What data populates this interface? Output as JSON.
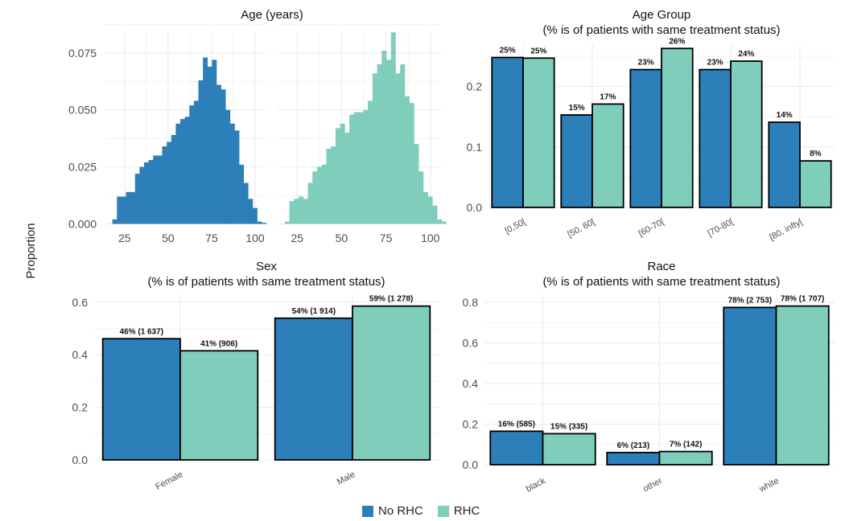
{
  "colors": {
    "no_rhc": "#2C7FB8",
    "rhc": "#7FCDBB",
    "grid": "#EBEBEB",
    "axis_text": "#4D4D4D"
  },
  "y_axis_label": "Proportion",
  "legend": [
    {
      "label": "No RHC",
      "color": "#2C7FB8"
    },
    {
      "label": "RHC",
      "color": "#7FCDBB"
    }
  ],
  "chart_data": [
    {
      "id": "age",
      "type": "bar",
      "subtype": "histogram",
      "title": "Age (years)",
      "subtitle": "",
      "ylim": [
        0,
        0.085
      ],
      "yticks": [
        0.0,
        0.025,
        0.05,
        0.075
      ],
      "ytick_labels": [
        "0.000",
        "0.025",
        "0.050",
        "0.075"
      ],
      "xlim": [
        14,
        106
      ],
      "xticks": [
        25,
        50,
        75,
        100
      ],
      "bin_start": 18,
      "bin_width": 2.6,
      "series": [
        {
          "name": "No RHC",
          "values": [
            0.002,
            0.012,
            0.012,
            0.014,
            0.014,
            0.022,
            0.025,
            0.027,
            0.028,
            0.03,
            0.03,
            0.034,
            0.036,
            0.039,
            0.044,
            0.046,
            0.047,
            0.052,
            0.054,
            0.063,
            0.073,
            0.069,
            0.072,
            0.061,
            0.059,
            0.05,
            0.044,
            0.041,
            0.026,
            0.018,
            0.011,
            0.007,
            0.001,
            0.0005
          ]
        },
        {
          "name": "RHC",
          "values": [
            0.001,
            0.01,
            0.011,
            0.012,
            0.011,
            0.018,
            0.023,
            0.025,
            0.026,
            0.033,
            0.034,
            0.042,
            0.044,
            0.04,
            0.048,
            0.049,
            0.049,
            0.05,
            0.054,
            0.066,
            0.07,
            0.076,
            0.072,
            0.084,
            0.066,
            0.07,
            0.056,
            0.053,
            0.035,
            0.023,
            0.014,
            0.012,
            0.008,
            0.002,
            0.001
          ]
        }
      ]
    },
    {
      "id": "agegroup",
      "type": "bar",
      "title": "Age Group",
      "subtitle": "(% is of patients with same treatment status)",
      "categories": [
        "[0,50[",
        "[50, 60[",
        "[60-70[",
        "[70-80[",
        "[80, infty["
      ],
      "ylim": [
        0,
        0.27
      ],
      "yticks": [
        0.0,
        0.1,
        0.2
      ],
      "ytick_labels": [
        "0.0",
        "0.1",
        "0.2"
      ],
      "series": [
        {
          "name": "No RHC",
          "values": [
            0.248,
            0.153,
            0.228,
            0.228,
            0.141
          ],
          "labels": [
            "25%",
            "15%",
            "23%",
            "23%",
            "14%"
          ]
        },
        {
          "name": "RHC",
          "values": [
            0.247,
            0.171,
            0.263,
            0.242,
            0.077
          ],
          "labels": [
            "25%",
            "17%",
            "26%",
            "24%",
            "8%"
          ]
        }
      ]
    },
    {
      "id": "sex",
      "type": "bar",
      "title": "Sex",
      "subtitle": "(% is of patients with same treatment status)",
      "categories": [
        "Female",
        "Male"
      ],
      "ylim": [
        0,
        0.63
      ],
      "yticks": [
        0.0,
        0.2,
        0.4,
        0.6
      ],
      "ytick_labels": [
        "0.0",
        "0.2",
        "0.4",
        "0.6"
      ],
      "series": [
        {
          "name": "No RHC",
          "values": [
            0.461,
            0.539
          ],
          "labels": [
            "46% (1 637)",
            "54% (1 914)"
          ]
        },
        {
          "name": "RHC",
          "values": [
            0.415,
            0.585
          ],
          "labels": [
            "41% (906)",
            "59% (1 278)"
          ]
        }
      ]
    },
    {
      "id": "race",
      "type": "bar",
      "title": "Race",
      "subtitle": "(% is of patients with same treatment status)",
      "categories": [
        "black",
        "other",
        "white"
      ],
      "ylim": [
        0,
        0.84
      ],
      "yticks": [
        0.0,
        0.2,
        0.4,
        0.6,
        0.8
      ],
      "ytick_labels": [
        "0.0",
        "0.2",
        "0.4",
        "0.6",
        "0.8"
      ],
      "series": [
        {
          "name": "No RHC",
          "values": [
            0.165,
            0.06,
            0.775
          ],
          "labels": [
            "16% (585)",
            "6% (213)",
            "78% (2 753)"
          ]
        },
        {
          "name": "RHC",
          "values": [
            0.153,
            0.065,
            0.782
          ],
          "labels": [
            "15% (335)",
            "7% (142)",
            "78% (1 707)"
          ]
        }
      ]
    }
  ]
}
